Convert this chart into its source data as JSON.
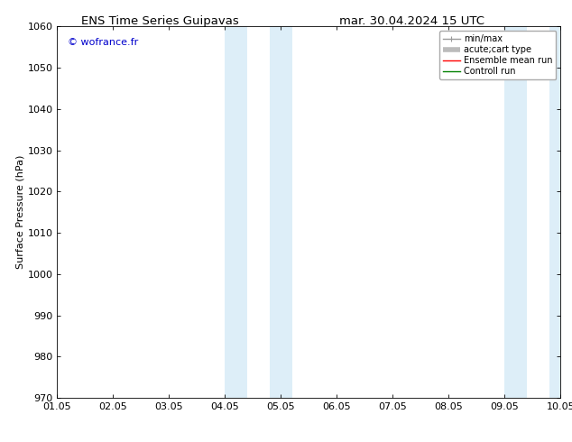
{
  "title_left": "ENS Time Series Guipavas",
  "title_right": "mar. 30.04.2024 15 UTC",
  "ylabel": "Surface Pressure (hPa)",
  "ylim": [
    970,
    1060
  ],
  "yticks": [
    970,
    980,
    990,
    1000,
    1010,
    1020,
    1030,
    1040,
    1050,
    1060
  ],
  "xlim": [
    0.0,
    9.0
  ],
  "xtick_positions": [
    0,
    1,
    2,
    3,
    4,
    5,
    6,
    7,
    8,
    9
  ],
  "xtick_labels": [
    "01.05",
    "02.05",
    "03.05",
    "04.05",
    "05.05",
    "06.05",
    "07.05",
    "08.05",
    "09.05",
    "10.05"
  ],
  "shaded_regions": [
    {
      "xstart": 3.0,
      "xend": 3.4,
      "color": "#ddeef8"
    },
    {
      "xstart": 3.8,
      "xend": 4.2,
      "color": "#ddeef8"
    },
    {
      "xstart": 8.0,
      "xend": 8.4,
      "color": "#ddeef8"
    },
    {
      "xstart": 8.8,
      "xend": 9.0,
      "color": "#ddeef8"
    }
  ],
  "watermark_text": "© wofrance.fr",
  "watermark_color": "#0000cc",
  "legend_items": [
    {
      "label": "min/max",
      "color": "#999999",
      "lw": 1.0
    },
    {
      "label": "acute;cart type",
      "color": "#bbbbbb",
      "lw": 4.0
    },
    {
      "label": "Ensemble mean run",
      "color": "#ff0000",
      "lw": 1.0
    },
    {
      "label": "Controll run",
      "color": "#008000",
      "lw": 1.0
    }
  ],
  "background_color": "#ffffff",
  "title_fontsize": 9.5,
  "label_fontsize": 8,
  "tick_fontsize": 8,
  "legend_fontsize": 7
}
